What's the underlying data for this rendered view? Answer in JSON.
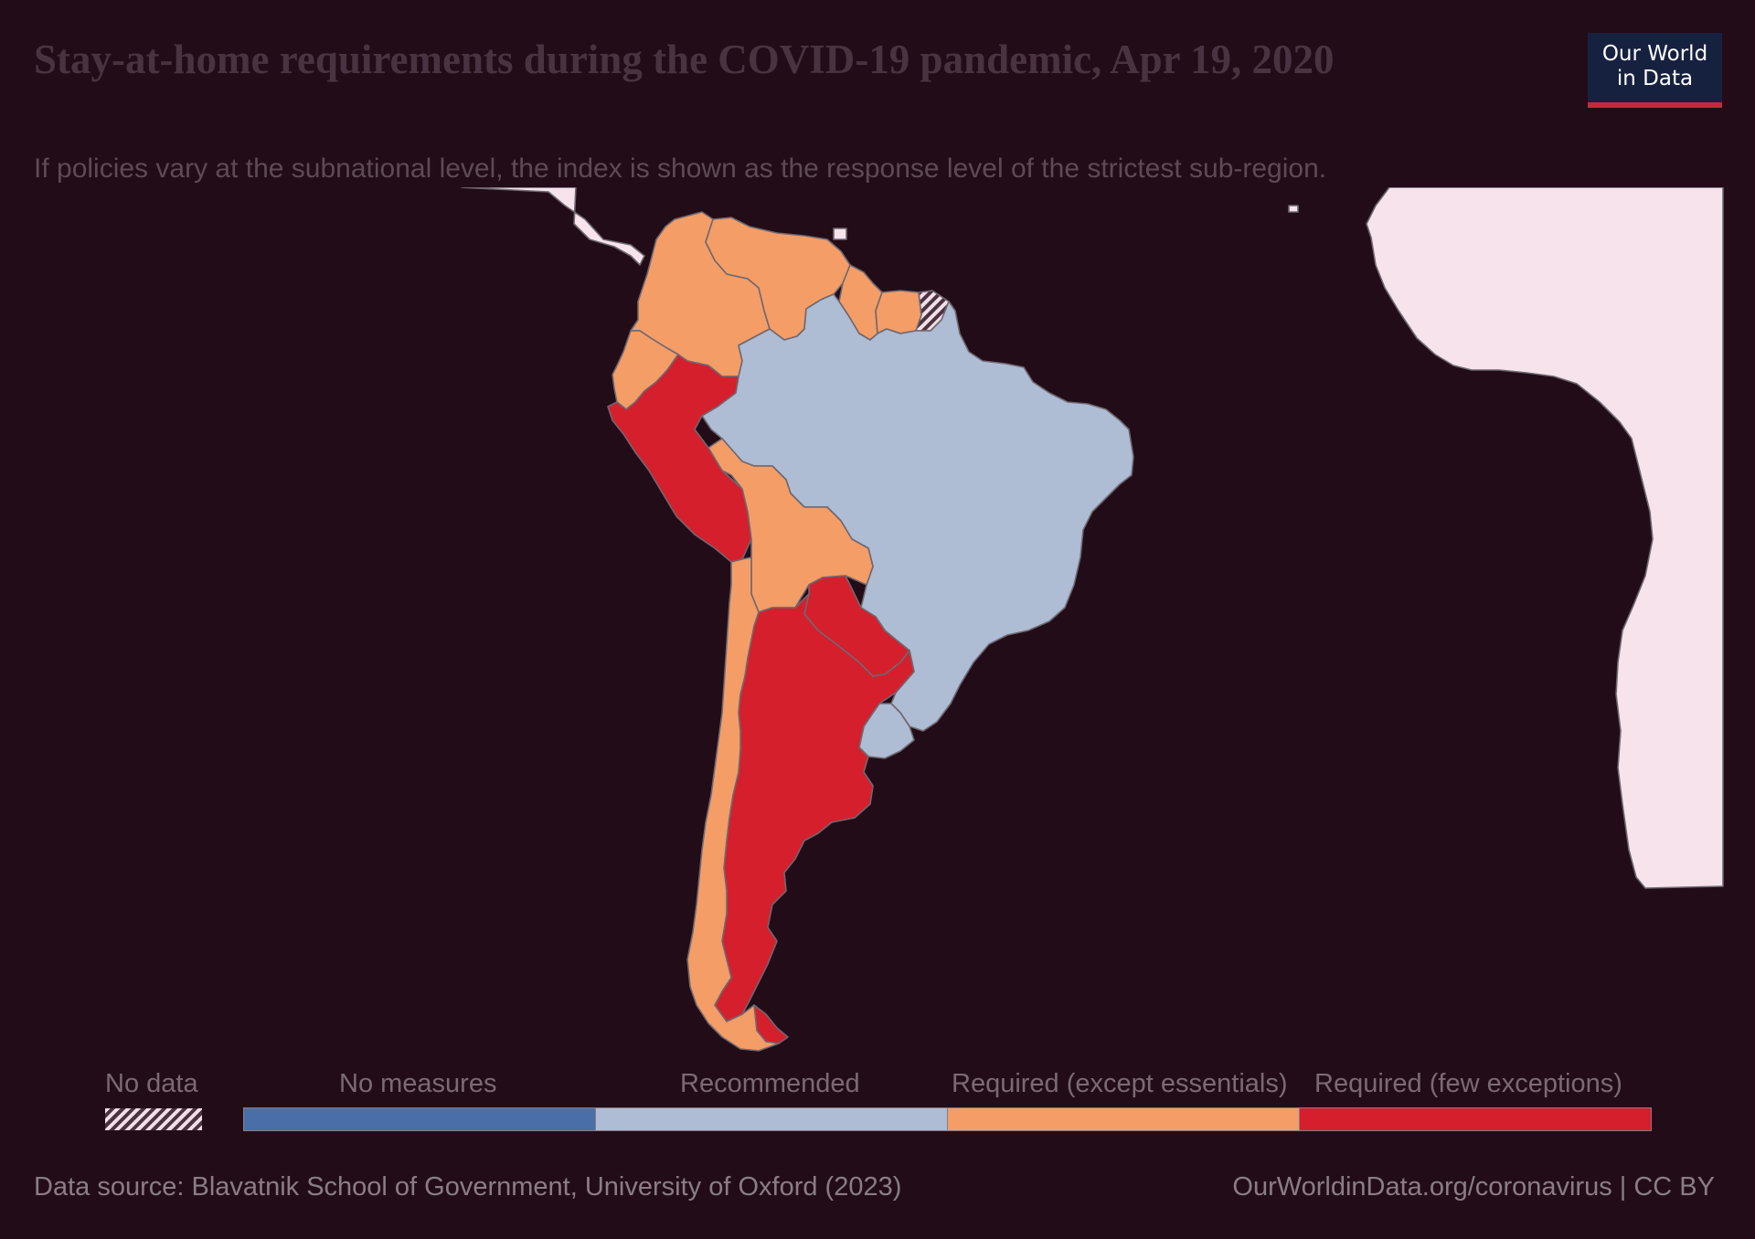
{
  "header": {
    "title": "Stay-at-home requirements during the COVID-19 pandemic, Apr 19, 2020",
    "subtitle": "If policies vary at the subnational level, the index is shown as the response level of the strictest sub-region.",
    "logo_line1": "Our World",
    "logo_line2": "in Data"
  },
  "legend": {
    "no_data_label": "No data",
    "categories": [
      {
        "label": "No measures",
        "color": "#4a6fa8"
      },
      {
        "label": "Recommended",
        "color": "#aebcd4"
      },
      {
        "label": "Required (except essentials)",
        "color": "#f49d67"
      },
      {
        "label": "Required (few exceptions)",
        "color": "#d51f2d"
      }
    ]
  },
  "map": {
    "region": "South America",
    "colors": {
      "no_measures": "#4a6fa8",
      "recommended": "#aebcd4",
      "required_except_essentials": "#f49d67",
      "required_few_exceptions": "#d51f2d",
      "other_land": "#f7e3ec",
      "no_data_pattern": "hatched"
    },
    "countries": [
      {
        "name": "Brazil",
        "level": "recommended"
      },
      {
        "name": "Uruguay",
        "level": "recommended"
      },
      {
        "name": "Colombia",
        "level": "required_except_essentials"
      },
      {
        "name": "Venezuela",
        "level": "required_except_essentials"
      },
      {
        "name": "Guyana",
        "level": "required_except_essentials"
      },
      {
        "name": "Suriname",
        "level": "required_except_essentials"
      },
      {
        "name": "Ecuador",
        "level": "required_except_essentials"
      },
      {
        "name": "Bolivia",
        "level": "required_except_essentials"
      },
      {
        "name": "Chile",
        "level": "required_except_essentials"
      },
      {
        "name": "Peru",
        "level": "required_few_exceptions"
      },
      {
        "name": "Argentina",
        "level": "required_few_exceptions"
      },
      {
        "name": "Paraguay",
        "level": "required_few_exceptions"
      },
      {
        "name": "French Guiana",
        "level": "no_data"
      }
    ]
  },
  "footer": {
    "source": "Data source: Blavatnik School of Government, University of Oxford (2023)",
    "credit": "OurWorldinData.org/coronavirus | CC BY"
  }
}
